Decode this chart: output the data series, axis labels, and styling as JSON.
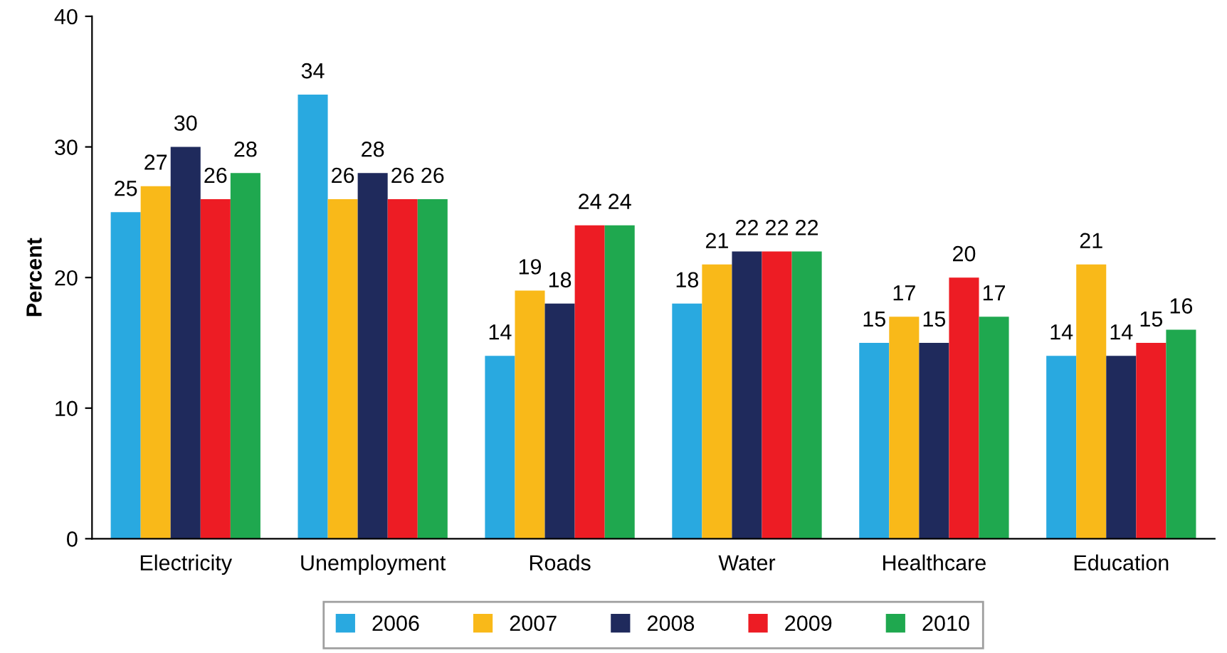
{
  "chart_data": {
    "type": "bar",
    "ylabel": "Percent",
    "categories": [
      "Electricity",
      "Unemployment",
      "Roads",
      "Water",
      "Healthcare",
      "Education"
    ],
    "series": [
      {
        "name": "2006",
        "color": "#29a9e0",
        "values": [
          25,
          34,
          14,
          18,
          15,
          14
        ]
      },
      {
        "name": "2007",
        "color": "#f9b919",
        "values": [
          27,
          26,
          19,
          21,
          17,
          21
        ]
      },
      {
        "name": "2008",
        "color": "#1f2a5c",
        "values": [
          30,
          28,
          18,
          22,
          15,
          14
        ]
      },
      {
        "name": "2009",
        "color": "#ed1c24",
        "values": [
          26,
          26,
          24,
          22,
          20,
          15
        ]
      },
      {
        "name": "2010",
        "color": "#1fa84f",
        "values": [
          28,
          26,
          24,
          22,
          17,
          16
        ]
      }
    ],
    "ylim": [
      0,
      40
    ],
    "yticks": [
      0,
      10,
      20,
      30,
      40
    ],
    "grid": false,
    "legend": "bottom",
    "data_labels": true
  }
}
